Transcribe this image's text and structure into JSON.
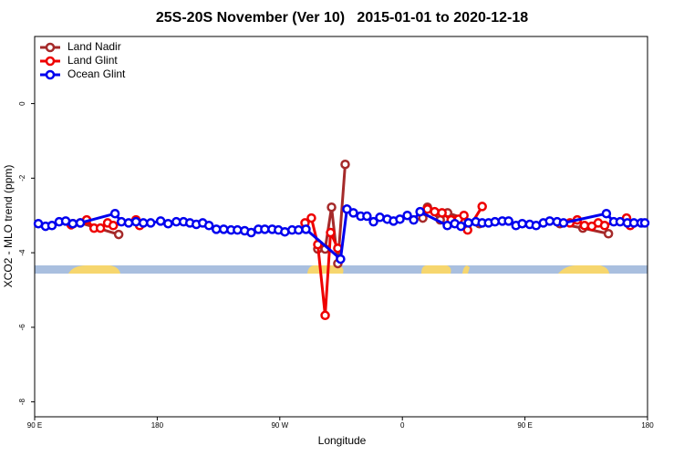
{
  "chart_data": {
    "type": "line",
    "title": "25S-20S November (Ver 10)   2015-01-01 to 2020-12-18",
    "x_label": "Longitude",
    "y_label": "XCO2 - MLO trend (ppm)",
    "xlim": [
      90,
      540
    ],
    "xticks": [
      {
        "value": 90,
        "label": "90 E"
      },
      {
        "value": 180,
        "label": "180"
      },
      {
        "value": 270,
        "label": "90 W"
      },
      {
        "value": 360,
        "label": "0"
      },
      {
        "value": 450,
        "label": "90 E"
      },
      {
        "value": 540,
        "label": "180"
      }
    ],
    "ylim": [
      -8.4,
      1.8
    ],
    "yticks": [
      0,
      -2,
      -4,
      -6,
      -8
    ],
    "legend": "top-left",
    "series": [
      {
        "name": "Land Nadir",
        "color": "#a52a2a",
        "x": [
          118.2,
          123.5,
          151.7,
          230,
          297.9,
          303.3,
          308,
          312.6,
          318,
          340,
          375,
          378.4,
          387.8,
          393.2,
          416.6,
          460,
          475.7,
          492.5,
          511.3
        ],
        "values": [
          -3.22,
          -3.2,
          -3.51,
          null,
          -3.9,
          -3.9,
          -2.78,
          -4.29,
          -1.63,
          null,
          -3.07,
          -2.78,
          -3.12,
          -2.93,
          -3.22,
          null,
          -3.22,
          -3.34,
          -3.49
        ]
      },
      {
        "name": "Land Glint",
        "color": "#ee0000",
        "x": [
          116.8,
          128.2,
          133.6,
          138.3,
          143.6,
          147.7,
          164.4,
          167.1,
          250,
          288.5,
          293.2,
          297.9,
          303.3,
          307.3,
          312.6,
          340,
          378.4,
          383.7,
          389.1,
          395.8,
          401.2,
          405.2,
          407.9,
          418.6,
          470,
          483,
          488.4,
          493.7,
          499.1,
          503.8,
          508.5,
          524.6,
          527.3
        ],
        "values": [
          -3.25,
          -3.12,
          -3.34,
          -3.34,
          -3.2,
          -3.27,
          -3.12,
          -3.27,
          null,
          -3.2,
          -3.07,
          -3.78,
          -5.68,
          -3.46,
          -3.88,
          null,
          -2.83,
          -2.9,
          -2.93,
          -3.12,
          -3.1,
          -3.0,
          -3.39,
          -2.76,
          null,
          -3.2,
          -3.12,
          -3.27,
          -3.29,
          -3.2,
          -3.27,
          -3.07,
          -3.27
        ]
      },
      {
        "name": "Ocean Glint",
        "color": "#0000ee",
        "x": [
          92.7,
          98,
          102.7,
          108,
          112.8,
          118,
          123.5,
          149,
          153.7,
          159,
          164.4,
          169.8,
          175.2,
          182.5,
          188,
          194,
          199.3,
          204,
          208.7,
          213.4,
          218,
          223.4,
          228.8,
          234.2,
          238.9,
          244.2,
          249,
          254.3,
          259,
          264.4,
          269,
          273.7,
          279,
          283.8,
          289.2,
          314.6,
          319.3,
          324,
          329.4,
          334,
          338.8,
          343.5,
          348.9,
          353.5,
          358.2,
          363.6,
          368.3,
          373,
          393,
          398.5,
          403,
          408.5,
          413.9,
          418.6,
          423.3,
          428,
          433.4,
          438,
          443.4,
          448,
          453.5,
          458.2,
          463.5,
          468.2,
          473.6,
          478.3,
          509.8,
          515.2,
          519.9,
          525.2,
          530,
          535.3,
          538
        ],
        "values": [
          -3.22,
          -3.29,
          -3.27,
          -3.17,
          -3.15,
          -3.22,
          -3.2,
          -2.95,
          -3.17,
          -3.2,
          -3.17,
          -3.2,
          -3.2,
          -3.15,
          -3.22,
          -3.17,
          -3.17,
          -3.2,
          -3.24,
          -3.2,
          -3.27,
          -3.37,
          -3.37,
          -3.39,
          -3.39,
          -3.41,
          -3.46,
          -3.37,
          -3.37,
          -3.37,
          -3.39,
          -3.44,
          -3.39,
          -3.39,
          -3.37,
          -4.17,
          -2.83,
          -2.93,
          -3.02,
          -3.02,
          -3.17,
          -3.05,
          -3.1,
          -3.15,
          -3.1,
          -3.0,
          -3.12,
          -2.9,
          -3.27,
          -3.22,
          -3.29,
          -3.2,
          -3.17,
          -3.2,
          -3.2,
          -3.17,
          -3.15,
          -3.15,
          -3.27,
          -3.22,
          -3.24,
          -3.27,
          -3.2,
          -3.15,
          -3.17,
          -3.2,
          -2.95,
          -3.17,
          -3.17,
          -3.2,
          -3.2,
          -3.2,
          -3.2
        ]
      }
    ]
  }
}
